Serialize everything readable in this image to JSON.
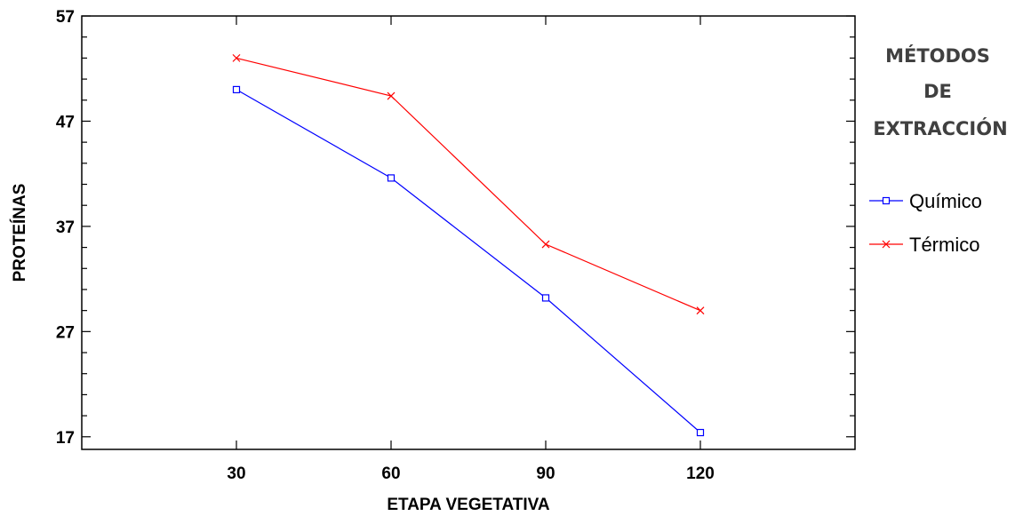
{
  "chart_data": {
    "type": "line",
    "categories": [
      "30",
      "60",
      "90",
      "120"
    ],
    "x": [
      30,
      60,
      90,
      120
    ],
    "series": [
      {
        "name": "Químico",
        "values": [
          50.0,
          41.6,
          30.2,
          17.4
        ],
        "color": "#0000ff",
        "marker": "square"
      },
      {
        "name": "Térmico",
        "values": [
          53.0,
          49.4,
          35.3,
          29.0
        ],
        "color": "#ff0000",
        "marker": "cross"
      }
    ],
    "xlabel": "ETAPA VEGETATIVA",
    "ylabel": "PROTEÍNAS",
    "xlim": [
      0,
      150
    ],
    "ylim": [
      15.8,
      57
    ],
    "yticks": [
      "17",
      "27",
      "37",
      "47",
      "57"
    ],
    "ytick_values": [
      17,
      27,
      37,
      47,
      57
    ],
    "legend_title": [
      "MÉTODOS",
      "DE",
      "EXTRACCIÓN"
    ],
    "legend_position": "right",
    "grid": false
  }
}
